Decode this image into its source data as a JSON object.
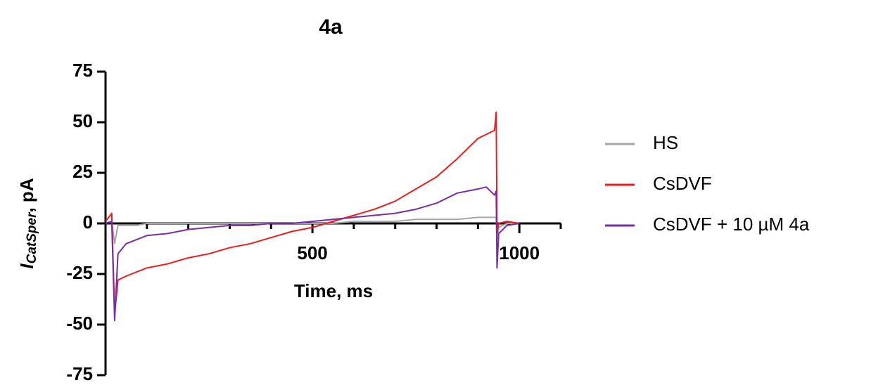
{
  "chart_data": {
    "type": "line",
    "title": "4a",
    "xlabel": "Time, ms",
    "ylabel": "I",
    "ylabel_sub": "CatSper",
    "ylabel_suffix": ", pA",
    "x": [
      0,
      15,
      22,
      30,
      50,
      75,
      100,
      150,
      200,
      250,
      300,
      350,
      400,
      450,
      500,
      550,
      600,
      650,
      700,
      750,
      800,
      850,
      900,
      920,
      940,
      944,
      946,
      950,
      970,
      1000
    ],
    "series": [
      {
        "name": "HS",
        "color": "#a6a6a6",
        "values": [
          0,
          1,
          -10,
          -1,
          -1,
          -1,
          0,
          0,
          0,
          0,
          0,
          0,
          0,
          0,
          0,
          0,
          1,
          1,
          1,
          2,
          2,
          2,
          3,
          3,
          3,
          3,
          -8,
          -2,
          0,
          0
        ]
      },
      {
        "name": "CsDVF",
        "color": "#ee1c1c",
        "values": [
          1,
          5,
          -45,
          -28,
          -26,
          -24,
          -22,
          -20,
          -17,
          -15,
          -12,
          -10,
          -7,
          -4,
          -2,
          1,
          4,
          7,
          11,
          17,
          23,
          32,
          42,
          44,
          46,
          55,
          -5,
          0,
          1,
          0
        ]
      },
      {
        "name": "CsDVF + 10 µM 4a",
        "color": "#7b2aa8",
        "values": [
          0,
          1,
          -48,
          -15,
          -10,
          -8,
          -6,
          -5,
          -3,
          -2,
          -1,
          -1,
          0,
          0,
          1,
          2,
          3,
          4,
          5,
          7,
          10,
          15,
          17,
          18,
          14,
          16,
          -22,
          -5,
          -1,
          0
        ]
      }
    ],
    "xlim": [
      0,
      1100
    ],
    "xticks": [
      500,
      1000
    ],
    "xminorticks": [
      100,
      200,
      300,
      400,
      600,
      700,
      800,
      900,
      1100
    ],
    "ylim": [
      -75,
      75
    ],
    "yticks": [
      -75,
      -50,
      -25,
      0,
      25,
      50,
      75
    ],
    "grid": false,
    "legend": "right"
  }
}
